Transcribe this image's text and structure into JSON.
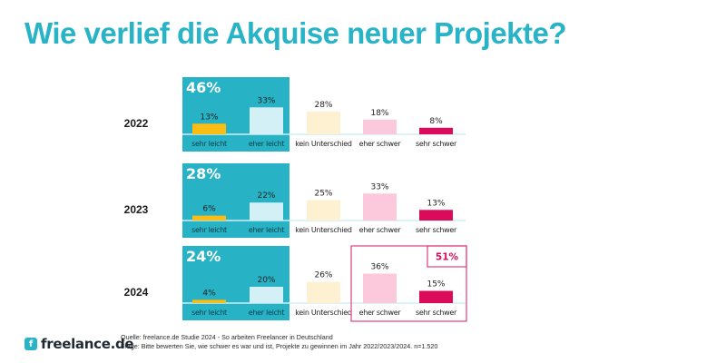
{
  "title": "Wie verlief die Akquise neuer Projekte?",
  "chart_data": {
    "type": "bar",
    "title": "Wie verlief die Akquise neuer Projekte?",
    "categories": [
      "sehr leicht",
      "eher leicht",
      "kein Unterschied",
      "eher schwer",
      "sehr schwer"
    ],
    "unit": "%",
    "rows": [
      {
        "year": "2022",
        "values": [
          13,
          33,
          28,
          18,
          8
        ],
        "easy_total": "46%"
      },
      {
        "year": "2023",
        "values": [
          6,
          22,
          25,
          33,
          13
        ],
        "easy_total": "28%"
      },
      {
        "year": "2024",
        "values": [
          4,
          20,
          26,
          36,
          15
        ],
        "easy_total": "24%",
        "hard_total": "51%"
      }
    ],
    "colors": {
      "sehr leicht": "#fbbd13",
      "eher leicht": "#d3f0f6",
      "kein Unterschied": "#fdf1d1",
      "eher schwer": "#fbc8dc",
      "sehr schwer": "#db0b5b",
      "easy_panel": "#27b2c5",
      "highlight_box": "#e0407e",
      "baseline": "#cfeef3"
    },
    "ylim": [
      0,
      40
    ],
    "grid": false,
    "legend": "none"
  },
  "footer": {
    "logo_text": "freelance.de",
    "source_line": "Quelle: freelance.de Studie 2024 - So arbeiten Freelancer in Deutschland",
    "question_line": "Frage: Bitte bewerten Sie, wie schwer es war und ist, Projekte zu gewinnen im Jahr 2022/2023/2024. n=1.520"
  }
}
